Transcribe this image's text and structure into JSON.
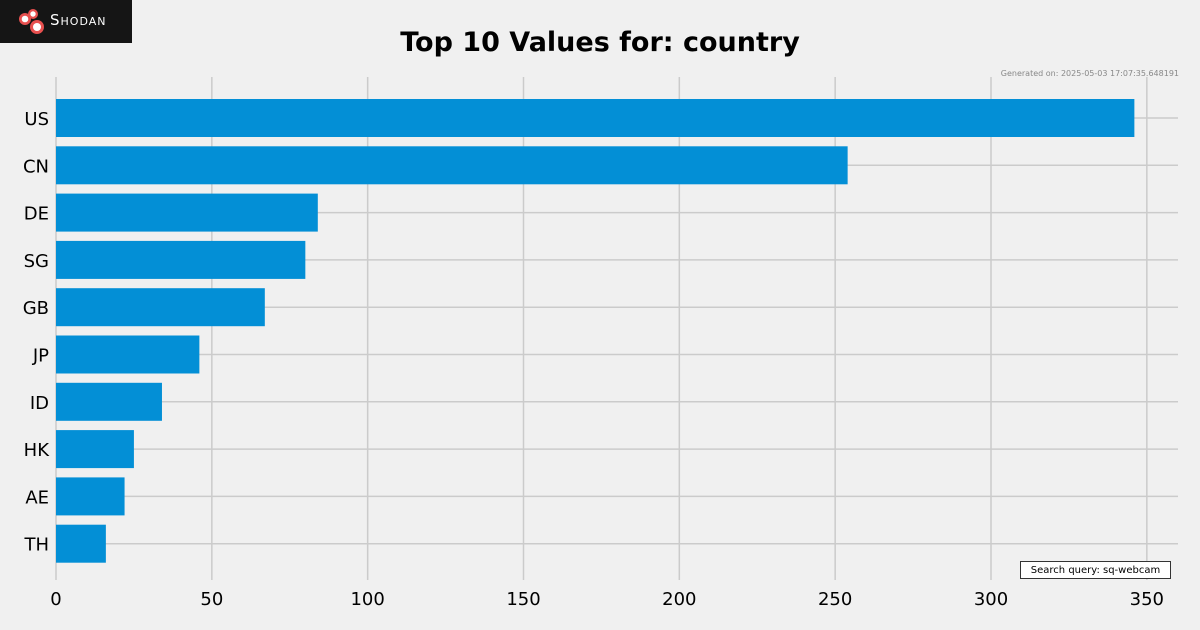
{
  "brand": {
    "logo_text": "Shodan",
    "logo_icon": "shodan-logo-icon",
    "logo_bg": "#151515"
  },
  "generated_text": "Generated on: 2025-05-03 17:07:35.648191",
  "search_query_text": "Search query: sq-webcam",
  "colors": {
    "bar": "#038fd6",
    "grid": "#cbcbcb",
    "background": "#f0f0f0"
  },
  "chart_data": {
    "type": "bar",
    "orientation": "horizontal",
    "title": "Top 10 Values for: country",
    "xlabel": "",
    "ylabel": "",
    "categories": [
      "US",
      "CN",
      "DE",
      "SG",
      "GB",
      "JP",
      "ID",
      "HK",
      "AE",
      "TH"
    ],
    "values": [
      346,
      254,
      84,
      80,
      67,
      46,
      34,
      25,
      22,
      16
    ],
    "xlim": [
      0,
      360
    ],
    "xticks": [
      0,
      50,
      100,
      150,
      200,
      250,
      300,
      350
    ],
    "grid": true,
    "legend": "none"
  }
}
